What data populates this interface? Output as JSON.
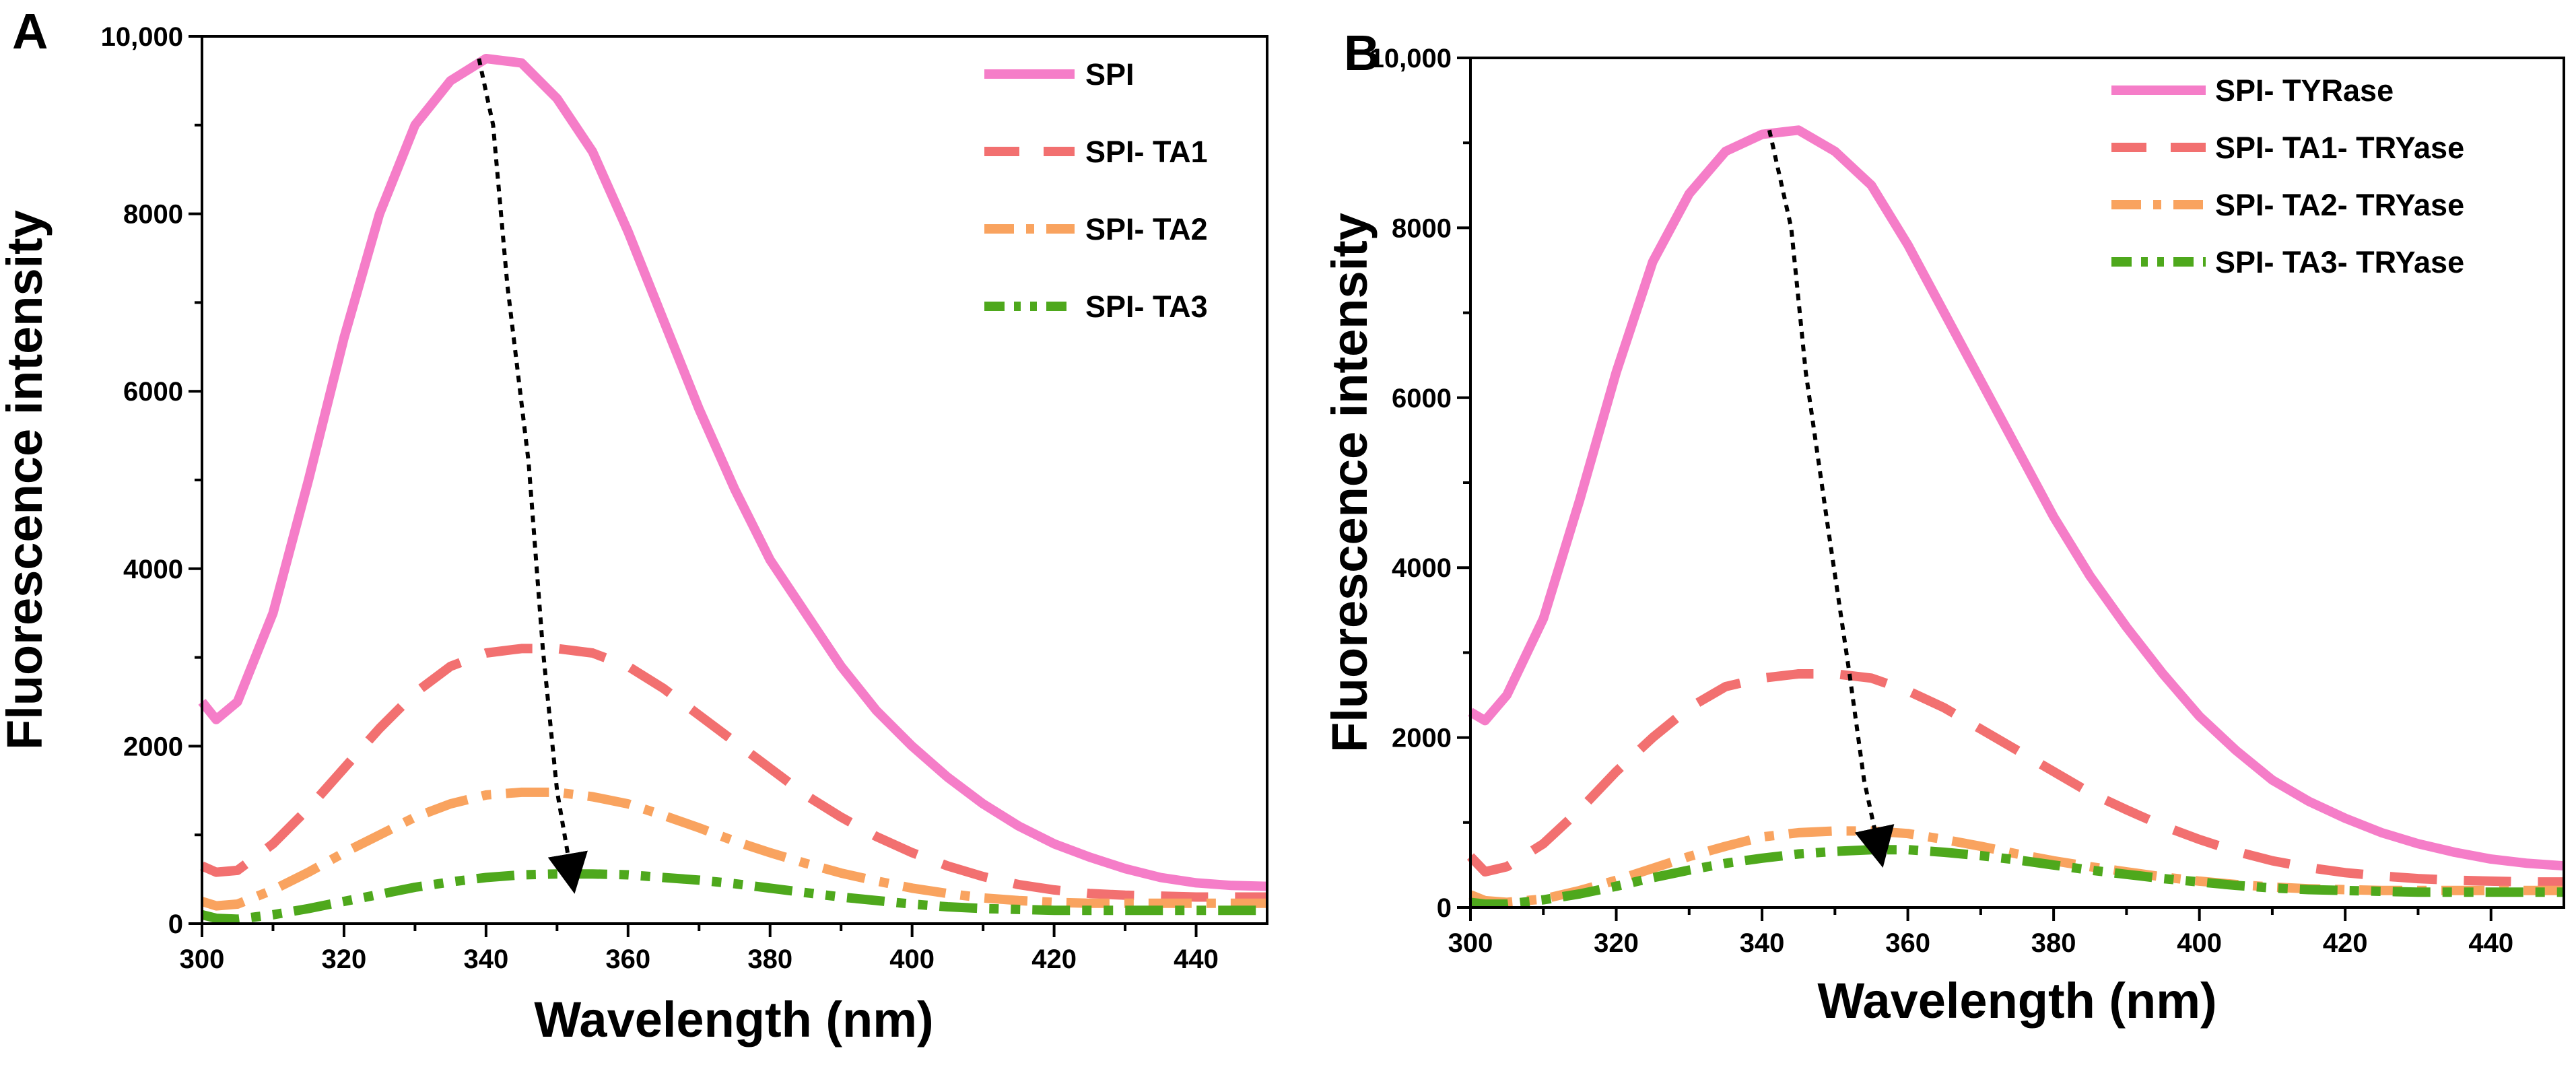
{
  "figure": {
    "panel_a_letter": "A",
    "panel_b_letter": "B",
    "colors": {
      "pink": "#F57DC8",
      "salmon": "#F27070",
      "orange": "#F9A35F",
      "green": "#4EA81C",
      "arrow": "#000000"
    }
  },
  "chart_data": [
    {
      "type": "line",
      "panel": "A",
      "title": "",
      "xlabel": "Wavelength (nm)",
      "ylabel": "Fluorescence intensity",
      "xlim": [
        300,
        450
      ],
      "ylim": [
        0,
        10000
      ],
      "xticks": [
        300,
        320,
        340,
        360,
        380,
        400,
        420,
        440
      ],
      "xtick_labels": [
        "300",
        "320",
        "340",
        "360",
        "380",
        "400",
        "420",
        "440"
      ],
      "yticks": [
        0,
        2000,
        4000,
        6000,
        8000,
        10000
      ],
      "ytick_labels": [
        "0",
        "2000",
        "4000",
        "6000",
        "8000",
        "10,000"
      ],
      "grid": false,
      "legend_position": "top-right",
      "x": [
        300,
        302,
        305,
        310,
        315,
        320,
        325,
        330,
        335,
        340,
        345,
        350,
        355,
        360,
        365,
        370,
        375,
        380,
        385,
        390,
        395,
        400,
        405,
        410,
        415,
        420,
        425,
        430,
        435,
        440,
        445,
        450
      ],
      "series": [
        {
          "name": "SPI",
          "color": "#F57DC8",
          "style": "solid",
          "values": [
            2500,
            2300,
            2500,
            3500,
            5000,
            6600,
            8000,
            9000,
            9500,
            9750,
            9700,
            9300,
            8700,
            7800,
            6800,
            5800,
            4900,
            4100,
            3500,
            2900,
            2400,
            2000,
            1650,
            1350,
            1100,
            900,
            750,
            620,
            520,
            460,
            430,
            420
          ]
        },
        {
          "name": "SPI- TA1",
          "color": "#F27070",
          "style": "dash",
          "values": [
            650,
            580,
            600,
            900,
            1300,
            1750,
            2200,
            2600,
            2900,
            3050,
            3100,
            3100,
            3050,
            2900,
            2650,
            2350,
            2050,
            1750,
            1450,
            1200,
            980,
            800,
            650,
            530,
            440,
            380,
            340,
            320,
            310,
            300,
            300,
            300
          ]
        },
        {
          "name": "SPI- TA2",
          "color": "#F9A35F",
          "style": "dashdot",
          "values": [
            250,
            200,
            220,
            380,
            580,
            800,
            1000,
            1200,
            1350,
            1450,
            1480,
            1480,
            1430,
            1350,
            1220,
            1080,
            930,
            800,
            680,
            570,
            480,
            400,
            340,
            290,
            260,
            240,
            230,
            230,
            230,
            230,
            230,
            230
          ]
        },
        {
          "name": "SPI- TA3",
          "color": "#4EA81C",
          "style": "dashdotdot",
          "values": [
            100,
            60,
            50,
            100,
            170,
            250,
            330,
            410,
            470,
            520,
            550,
            560,
            560,
            550,
            520,
            490,
            450,
            400,
            350,
            300,
            260,
            220,
            190,
            170,
            160,
            150,
            150,
            150,
            150,
            150,
            150,
            150
          ]
        }
      ],
      "annotation": {
        "type": "arrow",
        "description": "peak shift",
        "points": [
          [
            339,
            9750
          ],
          [
            341,
            9000
          ],
          [
            343,
            7200
          ],
          [
            346,
            5200
          ],
          [
            348,
            3100
          ],
          [
            350,
            1500
          ],
          [
            352,
            560
          ]
        ]
      }
    },
    {
      "type": "line",
      "panel": "B",
      "title": "",
      "xlabel": "Wavelength (nm)",
      "ylabel": "Fluorescence intensity",
      "xlim": [
        300,
        450
      ],
      "ylim": [
        0,
        10000
      ],
      "xticks": [
        300,
        320,
        340,
        360,
        380,
        400,
        420,
        440
      ],
      "xtick_labels": [
        "300",
        "320",
        "340",
        "360",
        "380",
        "400",
        "420",
        "440"
      ],
      "yticks": [
        0,
        2000,
        4000,
        6000,
        8000,
        10000
      ],
      "ytick_labels": [
        "0",
        "2000",
        "4000",
        "6000",
        "8000",
        "10,000"
      ],
      "grid": false,
      "legend_position": "top-right",
      "x": [
        300,
        302,
        305,
        310,
        315,
        320,
        325,
        330,
        335,
        340,
        345,
        350,
        355,
        360,
        365,
        370,
        375,
        380,
        385,
        390,
        395,
        400,
        405,
        410,
        415,
        420,
        425,
        430,
        435,
        440,
        445,
        450
      ],
      "series": [
        {
          "name": "SPI- TYRase",
          "color": "#F57DC8",
          "style": "solid",
          "values": [
            2300,
            2200,
            2500,
            3400,
            4800,
            6300,
            7600,
            8400,
            8900,
            9100,
            9150,
            8900,
            8500,
            7800,
            7000,
            6200,
            5400,
            4600,
            3900,
            3300,
            2750,
            2250,
            1850,
            1500,
            1250,
            1050,
            880,
            750,
            650,
            570,
            520,
            490
          ]
        },
        {
          "name": "SPI- TA1- TRYase",
          "color": "#F27070",
          "style": "dash",
          "values": [
            600,
            420,
            480,
            750,
            1150,
            1600,
            2000,
            2350,
            2600,
            2700,
            2750,
            2750,
            2700,
            2550,
            2350,
            2100,
            1850,
            1600,
            1350,
            1150,
            960,
            800,
            660,
            550,
            470,
            410,
            370,
            340,
            320,
            310,
            300,
            300
          ]
        },
        {
          "name": "SPI- TA2- TRYase",
          "color": "#F9A35F",
          "style": "dashdot",
          "values": [
            150,
            80,
            60,
            100,
            200,
            320,
            460,
            600,
            720,
            830,
            880,
            900,
            900,
            870,
            800,
            720,
            630,
            550,
            480,
            420,
            360,
            310,
            270,
            240,
            220,
            210,
            200,
            200,
            200,
            200,
            200,
            200
          ]
        },
        {
          "name": "SPI- TA3- TRYase",
          "color": "#4EA81C",
          "style": "dashdotdot",
          "values": [
            60,
            40,
            40,
            90,
            160,
            250,
            350,
            440,
            520,
            580,
            630,
            660,
            680,
            680,
            650,
            610,
            560,
            500,
            440,
            390,
            340,
            300,
            260,
            230,
            210,
            200,
            190,
            180,
            180,
            180,
            180,
            180
          ]
        }
      ],
      "annotation": {
        "type": "arrow",
        "description": "peak shift",
        "points": [
          [
            341,
            9150
          ],
          [
            344,
            8000
          ],
          [
            346,
            6300
          ],
          [
            349,
            4500
          ],
          [
            352,
            2750
          ],
          [
            354,
            1500
          ],
          [
            356,
            700
          ]
        ]
      }
    }
  ]
}
